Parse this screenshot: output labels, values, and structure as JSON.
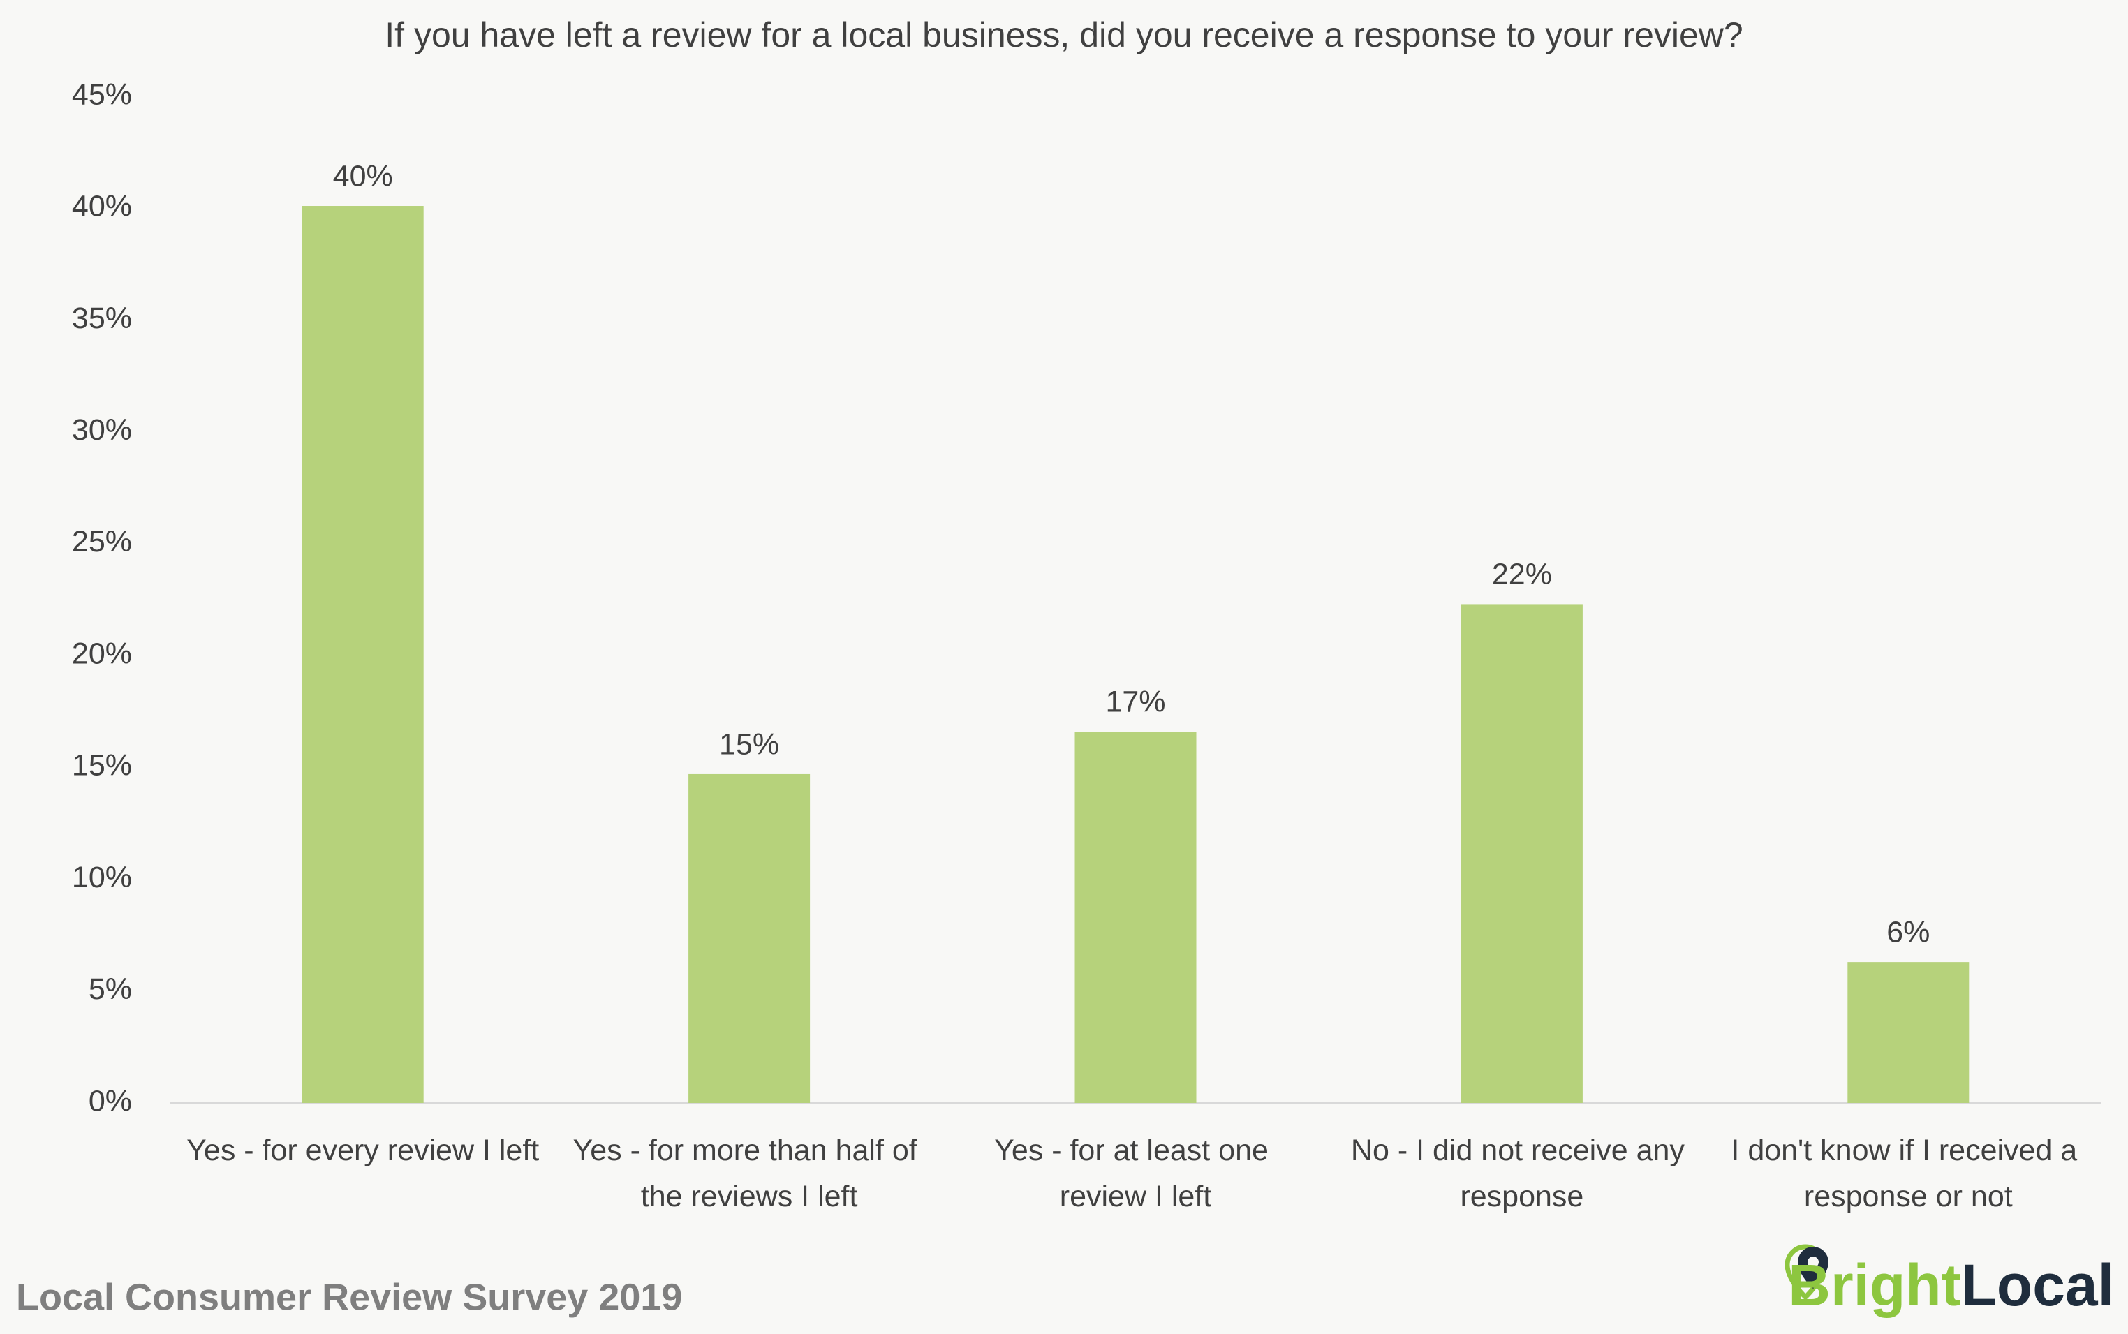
{
  "chart_data": {
    "type": "bar",
    "title": "If you have left a review for a local business, did you receive a response to your review?",
    "categories": [
      "Yes - for every review I left",
      "Yes - for more than half of the reviews I left",
      "Yes - for at least one review I left",
      "No - I did not receive any response",
      "I don't know if I received a response or not"
    ],
    "values": [
      40.1,
      14.7,
      16.6,
      22.3,
      6.3
    ],
    "value_labels": [
      "40%",
      "15%",
      "17%",
      "22%",
      "6%"
    ],
    "color": "#b6d27b",
    "ylim": [
      0,
      45
    ],
    "yticks": [
      {
        "value": 0,
        "label": "0%"
      },
      {
        "value": 5,
        "label": "5%"
      },
      {
        "value": 10,
        "label": "10%"
      },
      {
        "value": 15,
        "label": "15%"
      },
      {
        "value": 20,
        "label": "20%"
      },
      {
        "value": 25,
        "label": "25%"
      },
      {
        "value": 30,
        "label": "30%"
      },
      {
        "value": 35,
        "label": "35%"
      },
      {
        "value": 40,
        "label": "40%"
      },
      {
        "value": 45,
        "label": "45%"
      }
    ],
    "grid": false,
    "source": "Local Consumer Review Survey 2019",
    "logo": [
      "Bright",
      "Local"
    ]
  }
}
